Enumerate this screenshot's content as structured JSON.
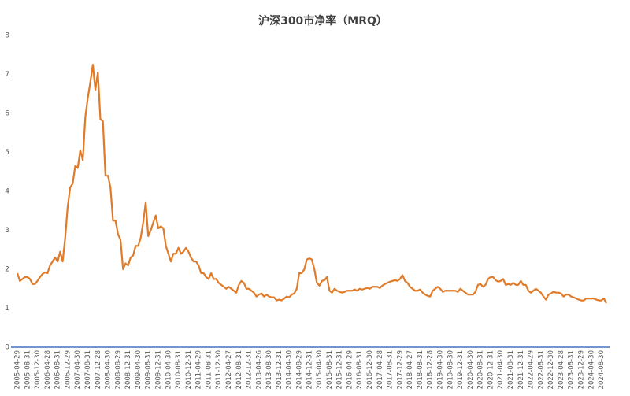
{
  "chart_data": {
    "type": "line",
    "title": "沪深300市净率（MRQ）",
    "categories": [
      "2005-04-29",
      null,
      null,
      null,
      "2005-08-31",
      null,
      null,
      null,
      "2005-12-30",
      null,
      null,
      null,
      "2006-04-28",
      null,
      null,
      null,
      "2006-08-31",
      null,
      null,
      null,
      "2006-12-29",
      null,
      null,
      null,
      "2007-04-30",
      null,
      null,
      null,
      "2007-08-31",
      null,
      null,
      null,
      "2007-12-28",
      null,
      null,
      null,
      "2008-04-30",
      null,
      null,
      null,
      "2008-08-29",
      null,
      null,
      null,
      "2008-12-31",
      null,
      null,
      null,
      "2009-04-30",
      null,
      null,
      null,
      "2009-08-31",
      null,
      null,
      null,
      "2009-12-31",
      null,
      null,
      null,
      "2010-04-30",
      null,
      null,
      null,
      "2010-08-31",
      null,
      null,
      null,
      "2010-12-31",
      null,
      null,
      null,
      "2011-04-29",
      null,
      null,
      null,
      "2011-08-31",
      null,
      null,
      null,
      "2011-12-30",
      null,
      null,
      null,
      "2012-04-27",
      null,
      null,
      null,
      "2012-08-31",
      null,
      null,
      null,
      "2012-12-31",
      null,
      null,
      null,
      "2013-04-26",
      null,
      null,
      null,
      "2013-08-30",
      null,
      null,
      null,
      "2013-12-31",
      null,
      null,
      null,
      "2014-04-30",
      null,
      null,
      null,
      "2014-08-29",
      null,
      null,
      null,
      "2014-12-31",
      null,
      null,
      null,
      "2015-04-30",
      null,
      null,
      null,
      "2015-08-31",
      null,
      null,
      null,
      "2015-12-31",
      null,
      null,
      null,
      "2016-04-29",
      null,
      null,
      null,
      "2016-08-31",
      null,
      null,
      null,
      "2016-12-30",
      null,
      null,
      null,
      "2017-04-28",
      null,
      null,
      null,
      "2017-08-31",
      null,
      null,
      null,
      "2017-12-29",
      null,
      null,
      null,
      "2018-04-27",
      null,
      null,
      null,
      "2018-08-31",
      null,
      null,
      null,
      "2018-12-28",
      null,
      null,
      null,
      "2019-04-30",
      null,
      null,
      null,
      "2019-08-30",
      null,
      null,
      null,
      "2019-12-31",
      null,
      null,
      null,
      "2020-04-30",
      null,
      null,
      null,
      "2020-08-31",
      null,
      null,
      null,
      "2020-12-31",
      null,
      null,
      null,
      "2021-04-30",
      null,
      null,
      null,
      "2021-08-31",
      null,
      null,
      null,
      "2021-12-31",
      null,
      null,
      null,
      "2022-04-29",
      null,
      null,
      null,
      "2022-08-31",
      null,
      null,
      null,
      "2022-12-30",
      null,
      null,
      null,
      "2023-04-28",
      null,
      null,
      null,
      "2023-08-31",
      null,
      null,
      null,
      "2023-12-29",
      null,
      null,
      null,
      "2024-04-30",
      null,
      null,
      null,
      "2024-08-30",
      null,
      null
    ],
    "values": [
      1.9,
      1.7,
      1.75,
      1.8,
      1.8,
      1.75,
      1.62,
      1.62,
      1.7,
      1.8,
      1.88,
      1.92,
      1.9,
      2.1,
      2.2,
      2.3,
      2.2,
      2.45,
      2.2,
      2.8,
      3.6,
      4.1,
      4.2,
      4.65,
      4.6,
      5.05,
      4.8,
      5.9,
      6.4,
      6.8,
      7.25,
      6.6,
      7.05,
      5.85,
      5.8,
      4.4,
      4.4,
      4.1,
      3.25,
      3.25,
      2.9,
      2.75,
      2.0,
      2.15,
      2.1,
      2.3,
      2.35,
      2.6,
      2.6,
      2.8,
      3.2,
      3.72,
      2.85,
      3.0,
      3.2,
      3.38,
      3.05,
      3.1,
      3.05,
      2.6,
      2.4,
      2.2,
      2.4,
      2.4,
      2.55,
      2.4,
      2.45,
      2.55,
      2.45,
      2.3,
      2.2,
      2.2,
      2.1,
      1.9,
      1.9,
      1.8,
      1.75,
      1.9,
      1.75,
      1.75,
      1.65,
      1.6,
      1.55,
      1.5,
      1.55,
      1.5,
      1.45,
      1.4,
      1.6,
      1.7,
      1.65,
      1.5,
      1.5,
      1.45,
      1.4,
      1.3,
      1.35,
      1.38,
      1.3,
      1.35,
      1.3,
      1.28,
      1.28,
      1.2,
      1.22,
      1.2,
      1.25,
      1.3,
      1.28,
      1.35,
      1.38,
      1.5,
      1.9,
      1.9,
      2.0,
      2.25,
      2.28,
      2.25,
      2.0,
      1.65,
      1.58,
      1.7,
      1.72,
      1.8,
      1.45,
      1.4,
      1.5,
      1.45,
      1.42,
      1.4,
      1.42,
      1.45,
      1.45,
      1.45,
      1.48,
      1.45,
      1.5,
      1.48,
      1.5,
      1.52,
      1.5,
      1.55,
      1.55,
      1.55,
      1.52,
      1.58,
      1.62,
      1.65,
      1.68,
      1.7,
      1.72,
      1.7,
      1.75,
      1.85,
      1.7,
      1.65,
      1.55,
      1.5,
      1.45,
      1.45,
      1.48,
      1.4,
      1.35,
      1.32,
      1.3,
      1.45,
      1.5,
      1.55,
      1.5,
      1.42,
      1.45,
      1.45,
      1.45,
      1.45,
      1.45,
      1.42,
      1.5,
      1.45,
      1.4,
      1.35,
      1.35,
      1.35,
      1.42,
      1.6,
      1.62,
      1.55,
      1.6,
      1.75,
      1.8,
      1.8,
      1.72,
      1.68,
      1.7,
      1.75,
      1.6,
      1.62,
      1.6,
      1.65,
      1.6,
      1.6,
      1.7,
      1.6,
      1.6,
      1.45,
      1.4,
      1.45,
      1.5,
      1.45,
      1.4,
      1.3,
      1.22,
      1.35,
      1.38,
      1.42,
      1.4,
      1.4,
      1.38,
      1.3,
      1.35,
      1.35,
      1.3,
      1.28,
      1.25,
      1.22,
      1.2,
      1.2,
      1.25,
      1.25,
      1.25,
      1.25,
      1.22,
      1.2,
      1.2,
      1.25,
      1.13
    ],
    "color": "#e07b2a",
    "ylim": [
      0,
      8
    ],
    "yticks": [
      0,
      1,
      2,
      3,
      4,
      5,
      6,
      7,
      8
    ],
    "grid": false
  }
}
